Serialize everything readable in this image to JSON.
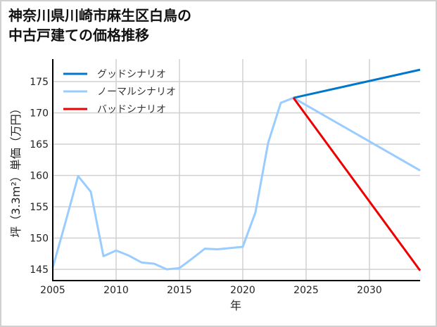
{
  "chart_data": {
    "type": "line",
    "title_lines": [
      "神奈川県川崎市麻生区白鳥の",
      "中古戸建ての価格推移"
    ],
    "xlabel": "年",
    "ylabel": "坪（3.3m²）単価（万円）",
    "xlim": [
      2005,
      2034
    ],
    "ylim": [
      143.2,
      178.6
    ],
    "xticks": [
      2005,
      2010,
      2015,
      2020,
      2025,
      2030
    ],
    "yticks": [
      145,
      150,
      155,
      160,
      165,
      170,
      175
    ],
    "grid": true,
    "legend_position": "top-left",
    "series": [
      {
        "name": "グッドシナリオ",
        "color": "#0077cc",
        "x": [
          2024,
          2034
        ],
        "y": [
          172.4,
          176.9
        ]
      },
      {
        "name": "ノーマルシナリオ",
        "color": "#99ccff",
        "x": [
          2005,
          2006,
          2007,
          2008,
          2009,
          2010,
          2011,
          2012,
          2013,
          2014,
          2015,
          2016,
          2017,
          2018,
          2019,
          2020,
          2021,
          2022,
          2023,
          2024,
          2034
        ],
        "y": [
          145.3,
          152.5,
          159.9,
          157.4,
          147.1,
          148.0,
          147.2,
          146.1,
          145.9,
          145.0,
          145.2,
          146.7,
          148.3,
          148.2,
          148.4,
          148.6,
          154.1,
          165.2,
          171.6,
          172.4,
          160.8
        ]
      },
      {
        "name": "バッドシナリオ",
        "color": "#ee0000",
        "x": [
          2024,
          2034
        ],
        "y": [
          172.4,
          144.8
        ]
      }
    ]
  }
}
